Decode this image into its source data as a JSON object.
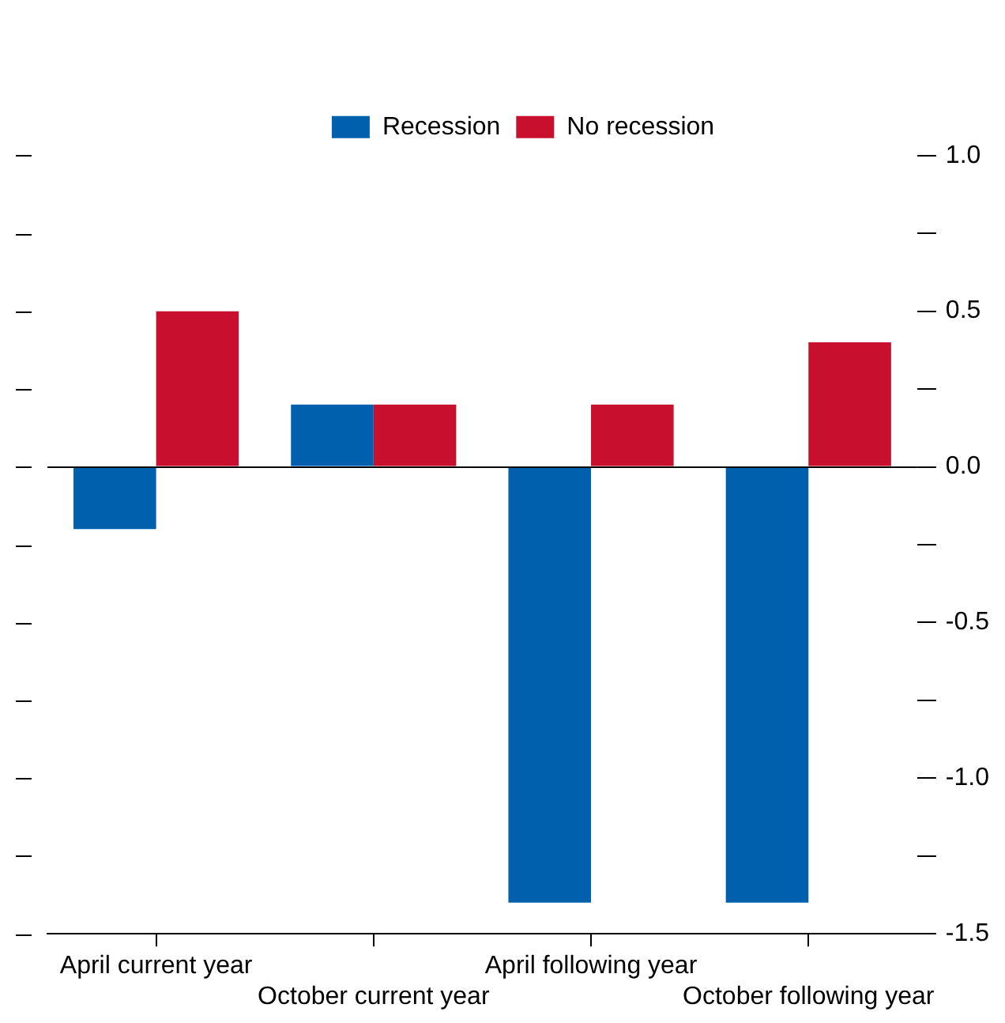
{
  "chart_data": {
    "type": "bar",
    "categories": [
      "April current year",
      "October current year",
      "April following year",
      "October following year"
    ],
    "series": [
      {
        "name": "Recession",
        "color": "#0060ae",
        "values": [
          -0.2,
          0.2,
          -1.4,
          -1.4
        ]
      },
      {
        "name": "No recession",
        "color": "#c8102e",
        "values": [
          0.5,
          0.2,
          0.2,
          0.4
        ]
      }
    ],
    "ylim": [
      -1.5,
      1
    ],
    "yticks": [
      {
        "value": -1.5,
        "label": "-1.5"
      },
      {
        "value": -1.25,
        "label": null
      },
      {
        "value": -1,
        "label": "-1.0"
      },
      {
        "value": -0.75,
        "label": null
      },
      {
        "value": -0.5,
        "label": "-0.5"
      },
      {
        "value": -0.25,
        "label": null
      },
      {
        "value": 0,
        "label": "0.0"
      },
      {
        "value": 0.25,
        "label": null
      },
      {
        "value": 0.5,
        "label": "0.5"
      },
      {
        "value": 0.75,
        "label": null
      },
      {
        "value": 1,
        "label": "1.0"
      }
    ],
    "ref_lines": [
      {
        "axis": "y",
        "value": 0,
        "color": "#000000"
      }
    ],
    "grid": false,
    "legend": "top"
  }
}
